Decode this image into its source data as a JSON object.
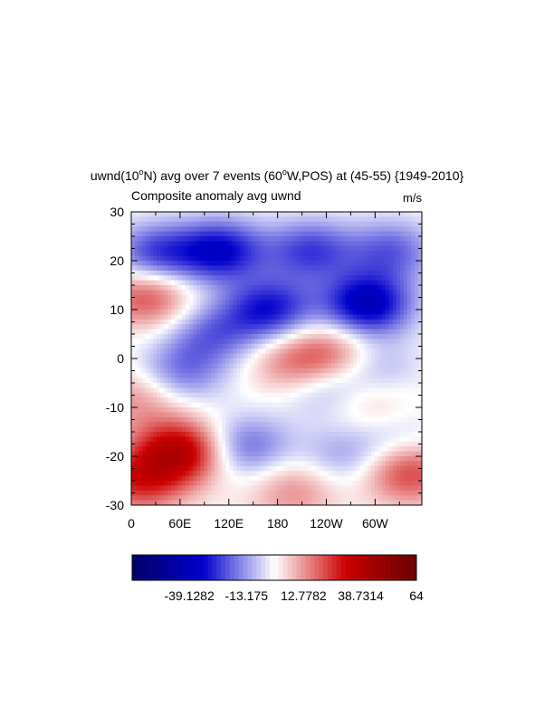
{
  "chart_data": {
    "type": "heatmap",
    "title": {
      "prefix": "uwnd(10",
      "sup1": "o",
      "middle": "N) avg over 7 events (60",
      "sup2": "o",
      "suffix": "W,POS) at (45-55) {1949-2010}"
    },
    "subtitle_left": "Composite anomaly avg uwnd",
    "subtitle_right": "m/s",
    "x_ticks": [
      "0",
      "60E",
      "120E",
      "180",
      "120W",
      "60W"
    ],
    "x_tick_values": [
      0,
      60,
      120,
      180,
      240,
      300
    ],
    "x_range": [
      0,
      357.5
    ],
    "y_ticks": [
      "30",
      "20",
      "10",
      "0",
      "-10",
      "-20",
      "-30"
    ],
    "y_tick_values": [
      30,
      20,
      10,
      0,
      -10,
      -20,
      -30
    ],
    "y_range": [
      -30,
      30
    ],
    "colorbar": {
      "labels": [
        "-39.1282",
        "-13.175",
        "12.7782",
        "38.7314",
        "64"
      ],
      "label_values": [
        -39.1282,
        -13.175,
        12.7782,
        38.7314,
        64
      ],
      "min": -65.08,
      "max": 64,
      "colors": [
        "#000066",
        "#0000cc",
        "#ffffff",
        "#cc0000",
        "#660000"
      ]
    },
    "anomaly_field": [
      {
        "lon": 30,
        "lat": 21,
        "value": -26
      },
      {
        "lon": 110,
        "lat": 22,
        "value": -32
      },
      {
        "lon": 220,
        "lat": 22,
        "value": -24
      },
      {
        "lon": 290,
        "lat": 11,
        "value": -38
      },
      {
        "lon": 320,
        "lat": 22,
        "value": -20
      },
      {
        "lon": 170,
        "lat": 10,
        "value": -30
      },
      {
        "lon": 100,
        "lat": 5,
        "value": -18
      },
      {
        "lon": 60,
        "lat": -3,
        "value": -18
      },
      {
        "lon": 240,
        "lat": -6,
        "value": -14
      },
      {
        "lon": 300,
        "lat": -2,
        "value": -12
      },
      {
        "lon": 140,
        "lat": -18,
        "value": -20
      },
      {
        "lon": 260,
        "lat": -20,
        "value": -12
      },
      {
        "lon": 330,
        "lat": -17,
        "value": -10
      },
      {
        "lon": 20,
        "lat": 13,
        "value": 24
      },
      {
        "lon": 200,
        "lat": -1,
        "value": 16
      },
      {
        "lon": 250,
        "lat": 1,
        "value": 18
      },
      {
        "lon": 60,
        "lat": -19,
        "value": 38
      },
      {
        "lon": 10,
        "lat": -25,
        "value": 26
      },
      {
        "lon": 200,
        "lat": -27,
        "value": 14
      },
      {
        "lon": 340,
        "lat": -23,
        "value": 26
      },
      {
        "lon": 290,
        "lat": -9,
        "value": 10
      },
      {
        "lon": 10,
        "lat": -8,
        "value": 14
      }
    ]
  }
}
